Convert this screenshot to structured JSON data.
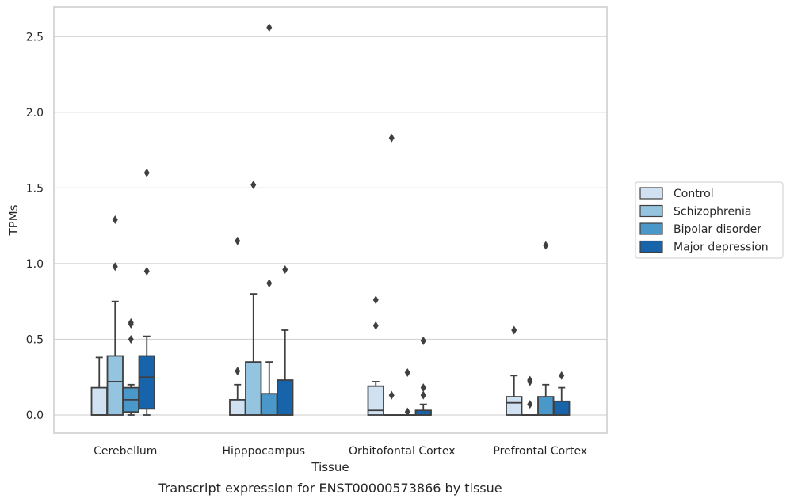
{
  "chart_data": {
    "type": "box",
    "title": "",
    "caption": "Transcript expression for ENST00000573866 by tissue",
    "xlabel": "Tissue",
    "ylabel": "TPMs",
    "ylim": [
      -0.12,
      2.69
    ],
    "yticks": [
      0.0,
      0.5,
      1.0,
      1.5,
      2.0,
      2.5
    ],
    "ytick_labels": [
      "0.0",
      "0.5",
      "1.0",
      "1.5",
      "2.0",
      "2.5"
    ],
    "grid": "horizontal",
    "legend_position": "right",
    "categories": [
      "Cerebellum",
      "Hipppocampus",
      "Orbitofontal Cortex",
      "Prefrontal Cortex"
    ],
    "series": [
      {
        "name": "Control",
        "color": "#d0e1f2",
        "boxes": [
          {
            "min": 0.0,
            "q1": 0.0,
            "median": 0.0,
            "q3": 0.18,
            "max": 0.38,
            "outliers": []
          },
          {
            "min": 0.0,
            "q1": 0.0,
            "median": 0.0,
            "q3": 0.1,
            "max": 0.2,
            "outliers": [
              0.29,
              1.15
            ]
          },
          {
            "min": 0.0,
            "q1": 0.0,
            "median": 0.03,
            "q3": 0.19,
            "max": 0.22,
            "outliers": [
              0.59,
              0.76
            ]
          },
          {
            "min": 0.0,
            "q1": 0.0,
            "median": 0.08,
            "q3": 0.12,
            "max": 0.26,
            "outliers": [
              0.56
            ]
          }
        ]
      },
      {
        "name": "Schizophrenia",
        "color": "#94c4df",
        "boxes": [
          {
            "min": 0.0,
            "q1": 0.0,
            "median": 0.22,
            "q3": 0.39,
            "max": 0.75,
            "outliers": [
              0.98,
              1.29
            ]
          },
          {
            "min": 0.0,
            "q1": 0.0,
            "median": 0.0,
            "q3": 0.35,
            "max": 0.8,
            "outliers": [
              1.52
            ]
          },
          {
            "min": 0.0,
            "q1": 0.0,
            "median": 0.0,
            "q3": 0.0,
            "max": 0.0,
            "outliers": [
              0.13,
              1.83
            ]
          },
          {
            "min": 0.0,
            "q1": 0.0,
            "median": 0.0,
            "q3": 0.0,
            "max": 0.0,
            "outliers": [
              0.07,
              0.22,
              0.23
            ]
          }
        ]
      },
      {
        "name": "Bipolar disorder",
        "color": "#4a98c9",
        "boxes": [
          {
            "min": 0.0,
            "q1": 0.02,
            "median": 0.1,
            "q3": 0.18,
            "max": 0.2,
            "outliers": [
              0.5,
              0.6,
              0.61
            ]
          },
          {
            "min": 0.0,
            "q1": 0.0,
            "median": 0.0,
            "q3": 0.14,
            "max": 0.35,
            "outliers": [
              0.87,
              2.56
            ]
          },
          {
            "min": 0.0,
            "q1": 0.0,
            "median": 0.0,
            "q3": 0.0,
            "max": 0.0,
            "outliers": [
              0.02,
              0.28
            ]
          },
          {
            "min": 0.0,
            "q1": 0.0,
            "median": 0.0,
            "q3": 0.12,
            "max": 0.2,
            "outliers": [
              1.12
            ]
          }
        ]
      },
      {
        "name": "Major depression",
        "color": "#1764ab",
        "boxes": [
          {
            "min": 0.0,
            "q1": 0.04,
            "median": 0.25,
            "q3": 0.39,
            "max": 0.52,
            "outliers": [
              0.95,
              1.6
            ]
          },
          {
            "min": 0.0,
            "q1": 0.0,
            "median": 0.0,
            "q3": 0.23,
            "max": 0.56,
            "outliers": [
              0.96
            ]
          },
          {
            "min": 0.0,
            "q1": 0.0,
            "median": 0.0,
            "q3": 0.03,
            "max": 0.07,
            "outliers": [
              0.13,
              0.18,
              0.49
            ]
          },
          {
            "min": 0.0,
            "q1": 0.0,
            "median": 0.0,
            "q3": 0.09,
            "max": 0.18,
            "outliers": [
              0.26
            ]
          }
        ]
      }
    ]
  }
}
